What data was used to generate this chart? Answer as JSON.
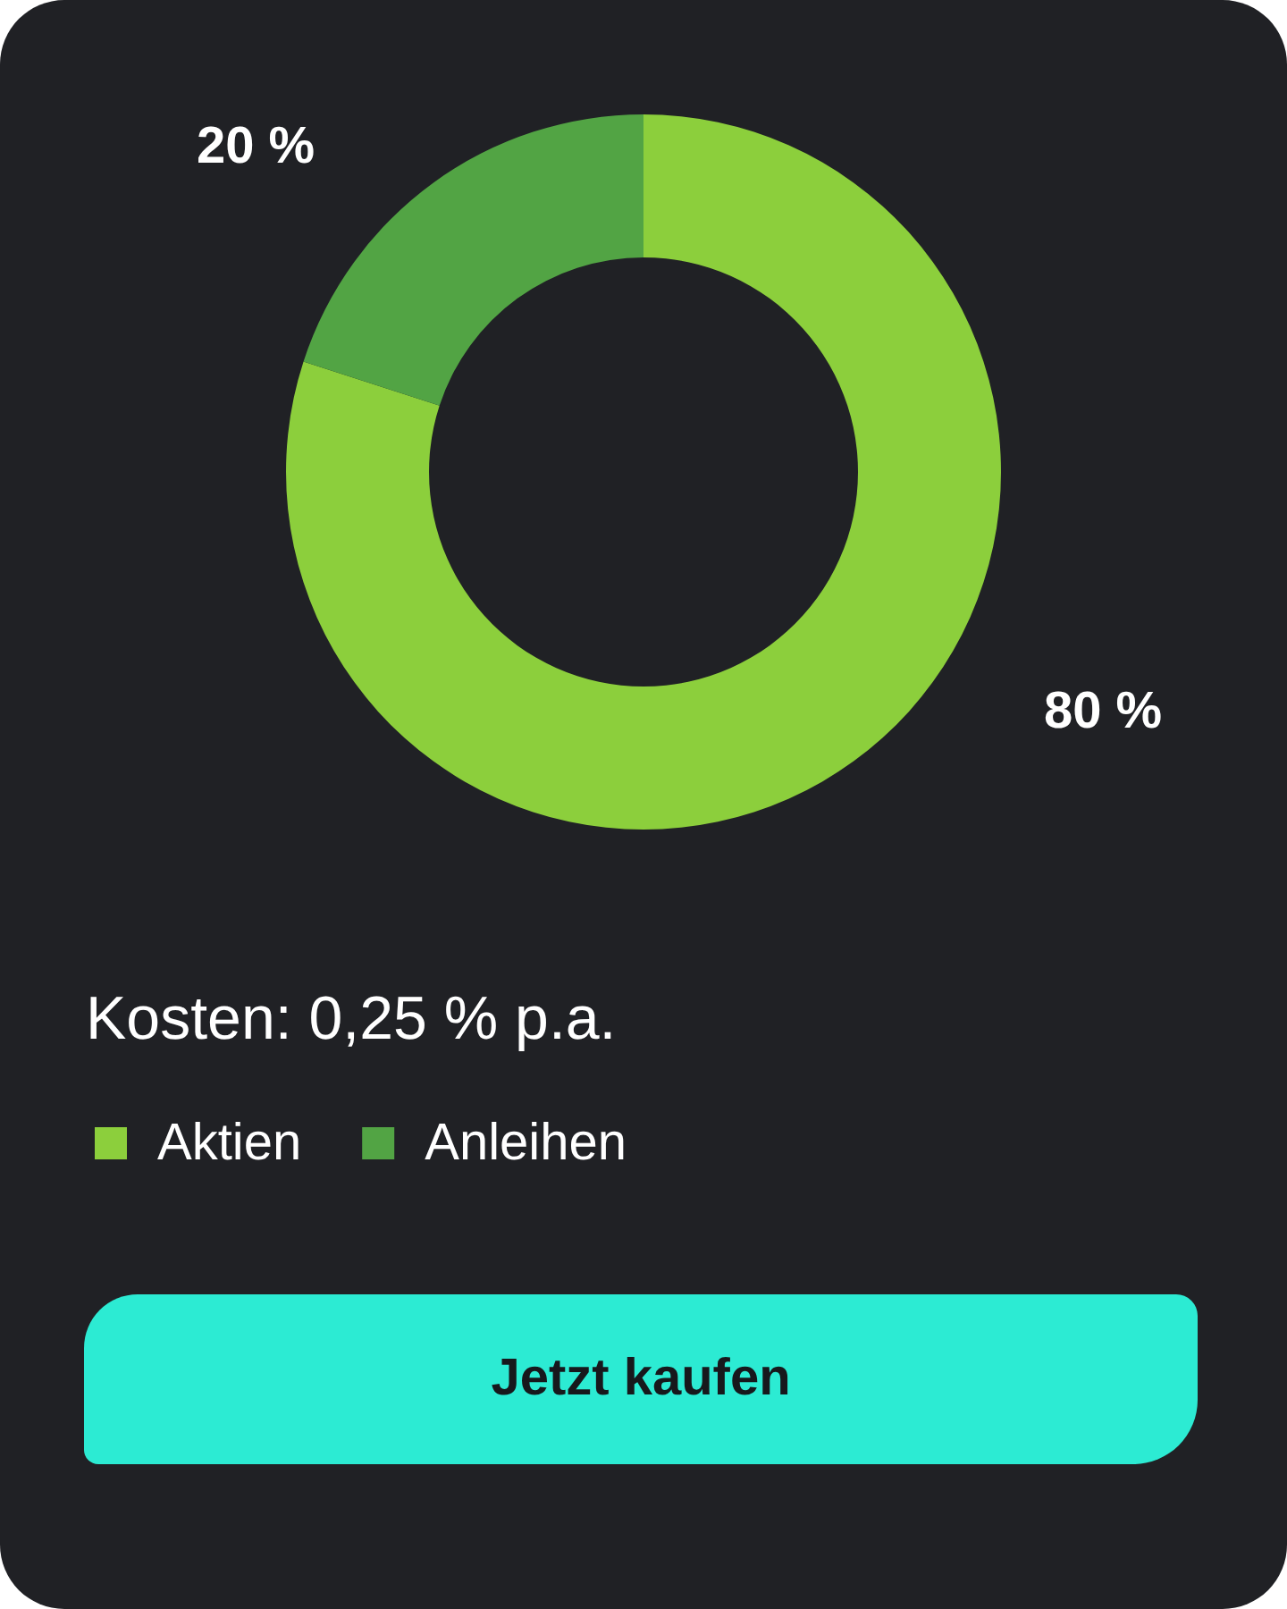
{
  "chart_data": {
    "type": "donut",
    "categories": [
      "Aktien",
      "Anleihen"
    ],
    "values": [
      80,
      20
    ],
    "colors": [
      "#8ccf3c",
      "#52a444"
    ],
    "value_labels": [
      "80 %",
      "20 %"
    ],
    "legend": "bottom left",
    "annotations": [
      "Kosten: 0,25 % p.a.",
      "Jetzt kaufen"
    ]
  }
}
